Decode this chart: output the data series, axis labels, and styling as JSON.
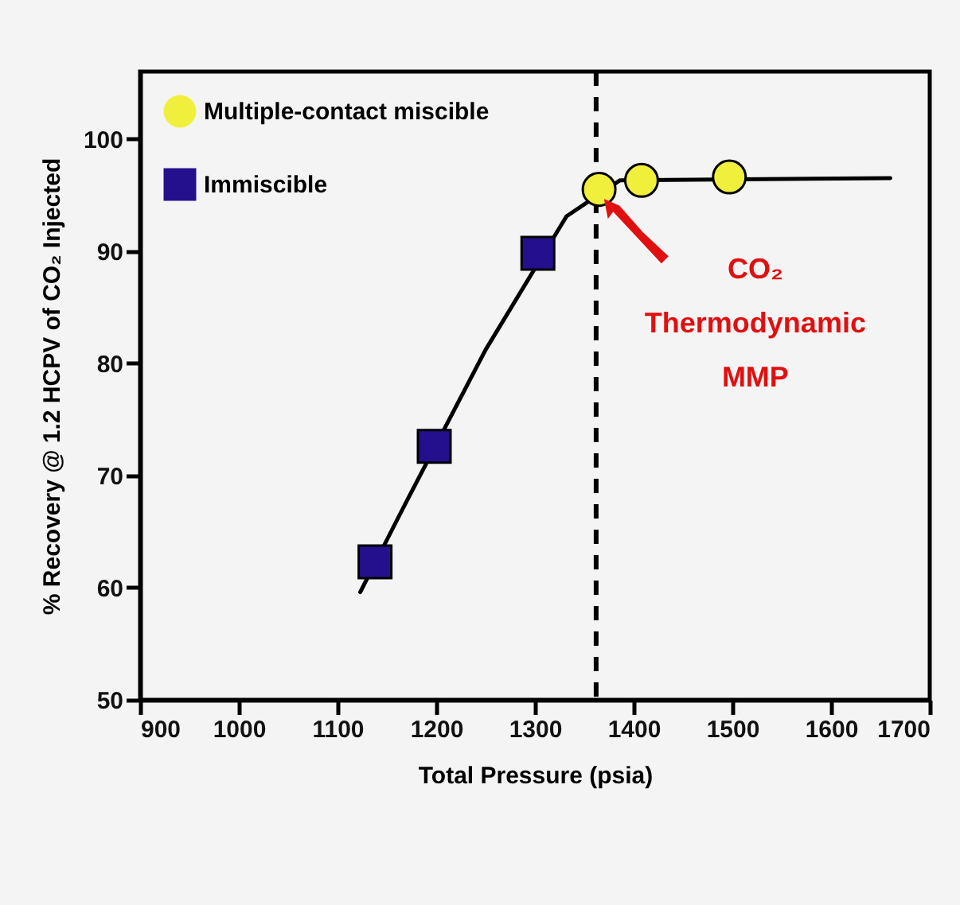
{
  "chart_data": {
    "type": "scatter",
    "xlabel": "Total Pressure (psia)",
    "ylabel": "% Recovery @ 1.2 HCPV of CO₂ Injected",
    "xlim": [
      900,
      1700
    ],
    "xticks": [
      900,
      1000,
      1100,
      1200,
      1300,
      1400,
      1500,
      1600,
      1700
    ],
    "ylim": [
      50,
      106
    ],
    "yticks": [
      50,
      60,
      70,
      80,
      90,
      100
    ],
    "grid": false,
    "legend": "top left",
    "series": [
      {
        "type": "line",
        "color": "#000000",
        "x": [
          1123,
          1170,
          1250,
          1332,
          1386,
          1660
        ],
        "values": [
          59.6,
          67.7,
          81.2,
          93.1,
          96.3,
          96.5
        ]
      },
      {
        "name": "Multiple-contact miscible",
        "color": "#f0f03c",
        "marker": "circle",
        "x": [
          1365,
          1408,
          1497
        ],
        "values": [
          95.5,
          96.3,
          96.6
        ]
      },
      {
        "name": "Immiscible",
        "color": "#24108c",
        "marker": "square",
        "x": [
          1138,
          1198,
          1303
        ],
        "values": [
          62.3,
          72.6,
          89.8
        ]
      }
    ],
    "ref_lines": [
      {
        "axis": "x",
        "value": 1362,
        "label": null,
        "color": "#000000",
        "line_style": "dashed"
      }
    ],
    "annotations": [
      {
        "text": "CO₂\nThermodynamic\nMMP",
        "x": 1362,
        "y": 95.5
      }
    ]
  }
}
